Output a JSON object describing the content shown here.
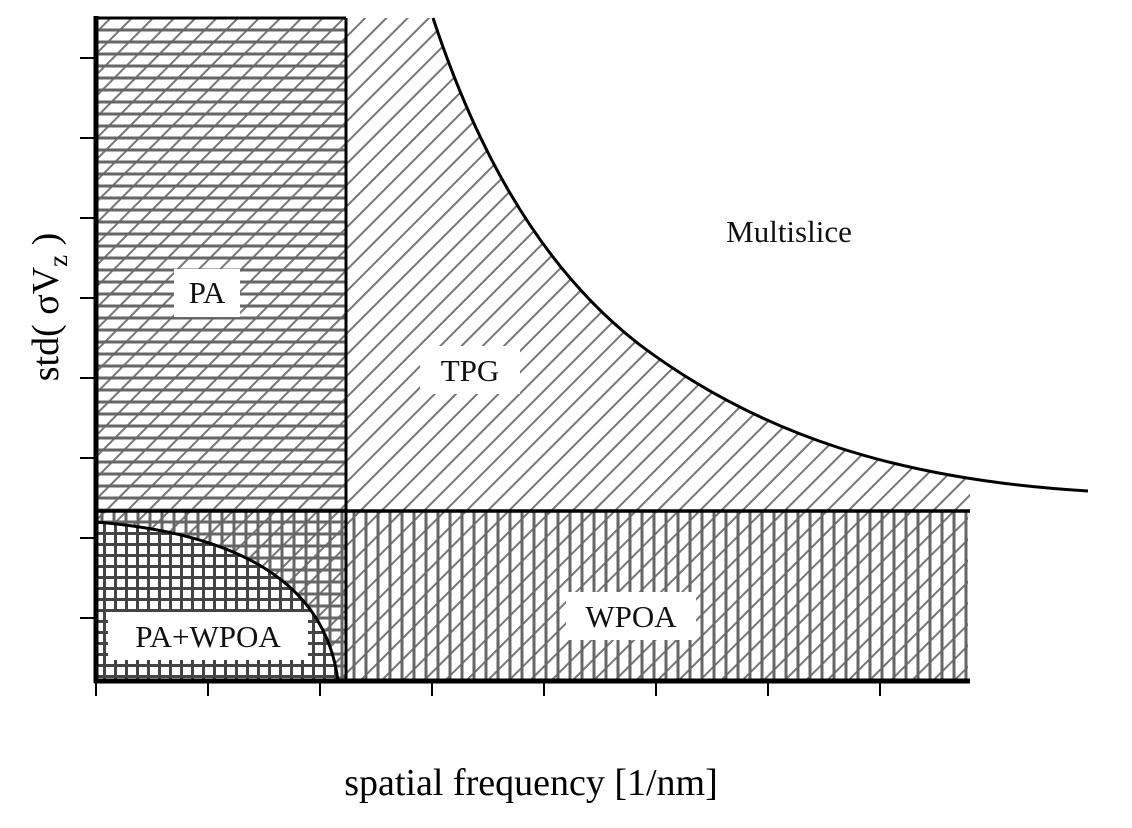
{
  "diagram": {
    "xlabel": "spatial frequency [1/nm]",
    "ylabel": {
      "prefix": "std( σV",
      "subscript": "z",
      "suffix": " )"
    },
    "regions": [
      {
        "id": "pa",
        "label": "PA",
        "pattern": "horizontal-hatch"
      },
      {
        "id": "tpg",
        "label": "TPG",
        "pattern": "diagonal-hatch"
      },
      {
        "id": "multislice",
        "label": "Multislice",
        "pattern": "none"
      },
      {
        "id": "wpoa",
        "label": "WPOA",
        "pattern": "vertical-diagonal-hatch"
      },
      {
        "id": "pa-wpoa",
        "label": "PA+WPOA",
        "pattern": "cross-hatch"
      }
    ],
    "colors": {
      "hatch": "#777777",
      "boundary": "#000000"
    }
  }
}
